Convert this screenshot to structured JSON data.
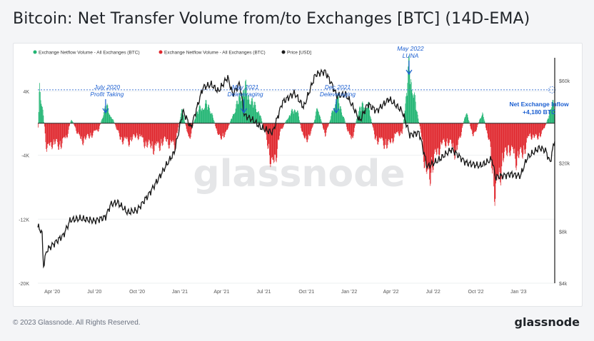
{
  "title": "Bitcoin: Net Transfer Volume from/to Exchanges [BTC] (14D-EMA)",
  "footer": {
    "copyright": "© 2023 Glassnode. All Rights Reserved.",
    "logo": "glassnode"
  },
  "watermark": "glassnode",
  "colors": {
    "inflow": "#21b573",
    "outflow": "#e0282e",
    "price": "#1a1a1a",
    "annotation": "#1c5fd1",
    "threshold": "#4a7fd6"
  },
  "chart_data": {
    "type": "bar",
    "legend_placement": "top-left",
    "series": [
      {
        "name": "Exchange Netflow Volume - All Exchanges (BTC)",
        "kind": "bar-positive"
      },
      {
        "name": "Exchange Netflow Volume - All Exchanges (BTC)",
        "kind": "bar-negative"
      },
      {
        "name": "Price [USD]",
        "kind": "line",
        "axis": "right-log"
      }
    ],
    "x_ticks": [
      "Apr '20",
      "Jul '20",
      "Oct '20",
      "Jan '21",
      "Apr '21",
      "Jul '21",
      "Oct '21",
      "Jan '22",
      "Apr '22",
      "Jul '22",
      "Oct '22",
      "Jan '23"
    ],
    "x_range": [
      "2020-03-01",
      "2023-03-20"
    ],
    "y_left": {
      "ticks": [
        4000,
        -4000,
        -12000,
        -20000
      ],
      "tick_labels": [
        "4K",
        "-4K",
        "-12K",
        "-20K"
      ],
      "range": [
        -20000,
        8000
      ]
    },
    "y_right": {
      "scale": "log",
      "ticks": [
        60000,
        20000,
        8000,
        4000
      ],
      "tick_labels": [
        "$60k",
        "$20k",
        "$8k",
        "$4k"
      ],
      "range": [
        4000,
        80000
      ]
    },
    "threshold_line": {
      "value": 4180,
      "style": "dashed"
    },
    "annotations": [
      {
        "lines": [
          "July 2020",
          "Profit Taking"
        ],
        "date": "2020-07-25",
        "arrow": true
      },
      {
        "lines": [
          "May 2021",
          "Deleveraging"
        ],
        "date": "2021-05-19",
        "arrow": true
      },
      {
        "lines": [
          "Dec 2021",
          "Deleveraging"
        ],
        "date": "2021-12-04",
        "arrow": true
      },
      {
        "lines": [
          "May 2022",
          "LUNA"
        ],
        "date": "2022-05-10",
        "arrow": true
      },
      {
        "lines": [
          "Net Exchange Inflow",
          "+4,180 BTC"
        ],
        "date": "2023-03-14",
        "arrow": false,
        "bold": true
      }
    ],
    "netflow": [
      {
        "date": "2020-03-01",
        "value": -800
      },
      {
        "date": "2020-03-04",
        "value": 7000
      },
      {
        "date": "2020-03-12",
        "value": 1500
      },
      {
        "date": "2020-03-20",
        "value": -4800
      },
      {
        "date": "2020-04-01",
        "value": -3200
      },
      {
        "date": "2020-04-15",
        "value": -3800
      },
      {
        "date": "2020-05-01",
        "value": -2500
      },
      {
        "date": "2020-05-12",
        "value": 800
      },
      {
        "date": "2020-06-01",
        "value": -3000
      },
      {
        "date": "2020-06-20",
        "value": -2200
      },
      {
        "date": "2020-07-10",
        "value": -1000
      },
      {
        "date": "2020-07-25",
        "value": 3000
      },
      {
        "date": "2020-08-10",
        "value": 500
      },
      {
        "date": "2020-08-25",
        "value": -2500
      },
      {
        "date": "2020-09-10",
        "value": -3200
      },
      {
        "date": "2020-10-01",
        "value": -2000
      },
      {
        "date": "2020-10-20",
        "value": -3500
      },
      {
        "date": "2020-11-10",
        "value": -4200
      },
      {
        "date": "2020-12-01",
        "value": -2800
      },
      {
        "date": "2020-12-20",
        "value": -4000
      },
      {
        "date": "2021-01-05",
        "value": 2500
      },
      {
        "date": "2021-01-20",
        "value": -3000
      },
      {
        "date": "2021-02-05",
        "value": 1800
      },
      {
        "date": "2021-02-25",
        "value": 3200
      },
      {
        "date": "2021-03-10",
        "value": 2000
      },
      {
        "date": "2021-03-25",
        "value": -2500
      },
      {
        "date": "2021-04-10",
        "value": -1800
      },
      {
        "date": "2021-04-25",
        "value": 1500
      },
      {
        "date": "2021-05-19",
        "value": 6000
      },
      {
        "date": "2021-06-05",
        "value": 3500
      },
      {
        "date": "2021-06-20",
        "value": 2000
      },
      {
        "date": "2021-07-05",
        "value": -2000
      },
      {
        "date": "2021-07-20",
        "value": -8000
      },
      {
        "date": "2021-08-05",
        "value": -1500
      },
      {
        "date": "2021-08-25",
        "value": 1500
      },
      {
        "date": "2021-09-10",
        "value": 2500
      },
      {
        "date": "2021-09-25",
        "value": -3000
      },
      {
        "date": "2021-10-10",
        "value": -1800
      },
      {
        "date": "2021-10-25",
        "value": 2800
      },
      {
        "date": "2021-11-10",
        "value": -2200
      },
      {
        "date": "2021-11-25",
        "value": 1800
      },
      {
        "date": "2021-12-04",
        "value": 4500
      },
      {
        "date": "2021-12-20",
        "value": 1000
      },
      {
        "date": "2022-01-05",
        "value": -3200
      },
      {
        "date": "2022-01-22",
        "value": 2500
      },
      {
        "date": "2022-02-10",
        "value": 3200
      },
      {
        "date": "2022-02-25",
        "value": -2500
      },
      {
        "date": "2022-03-10",
        "value": -3000
      },
      {
        "date": "2022-03-25",
        "value": -3800
      },
      {
        "date": "2022-04-10",
        "value": -2000
      },
      {
        "date": "2022-04-25",
        "value": -1500
      },
      {
        "date": "2022-05-10",
        "value": 9500
      },
      {
        "date": "2022-05-25",
        "value": 2500
      },
      {
        "date": "2022-06-05",
        "value": -2000
      },
      {
        "date": "2022-06-18",
        "value": -10000
      },
      {
        "date": "2022-07-01",
        "value": -6500
      },
      {
        "date": "2022-07-15",
        "value": -4000
      },
      {
        "date": "2022-08-01",
        "value": -3000
      },
      {
        "date": "2022-08-20",
        "value": -5000
      },
      {
        "date": "2022-09-10",
        "value": 2200
      },
      {
        "date": "2022-09-25",
        "value": -2500
      },
      {
        "date": "2022-10-15",
        "value": 2000
      },
      {
        "date": "2022-11-01",
        "value": -4500
      },
      {
        "date": "2022-11-12",
        "value": -12500
      },
      {
        "date": "2022-11-25",
        "value": -7000
      },
      {
        "date": "2022-12-10",
        "value": -4000
      },
      {
        "date": "2022-12-25",
        "value": -6000
      },
      {
        "date": "2023-01-10",
        "value": -5000
      },
      {
        "date": "2023-01-25",
        "value": -2000
      },
      {
        "date": "2023-02-10",
        "value": -2500
      },
      {
        "date": "2023-02-25",
        "value": -1000
      },
      {
        "date": "2023-03-08",
        "value": 1500
      },
      {
        "date": "2023-03-14",
        "value": 4180
      },
      {
        "date": "2023-03-20",
        "value": 2000
      }
    ],
    "price": [
      {
        "date": "2020-03-01",
        "value": 8500
      },
      {
        "date": "2020-03-10",
        "value": 7900
      },
      {
        "date": "2020-03-13",
        "value": 5000
      },
      {
        "date": "2020-03-20",
        "value": 6200
      },
      {
        "date": "2020-04-05",
        "value": 6800
      },
      {
        "date": "2020-04-25",
        "value": 7600
      },
      {
        "date": "2020-05-10",
        "value": 9300
      },
      {
        "date": "2020-06-01",
        "value": 9500
      },
      {
        "date": "2020-07-01",
        "value": 9200
      },
      {
        "date": "2020-07-25",
        "value": 9700
      },
      {
        "date": "2020-08-05",
        "value": 11500
      },
      {
        "date": "2020-08-20",
        "value": 11800
      },
      {
        "date": "2020-09-10",
        "value": 10300
      },
      {
        "date": "2020-10-01",
        "value": 10600
      },
      {
        "date": "2020-10-25",
        "value": 13000
      },
      {
        "date": "2020-11-15",
        "value": 16000
      },
      {
        "date": "2020-12-01",
        "value": 19000
      },
      {
        "date": "2020-12-20",
        "value": 23000
      },
      {
        "date": "2021-01-08",
        "value": 40000
      },
      {
        "date": "2021-01-25",
        "value": 32000
      },
      {
        "date": "2021-02-20",
        "value": 55000
      },
      {
        "date": "2021-03-10",
        "value": 57000
      },
      {
        "date": "2021-03-25",
        "value": 52000
      },
      {
        "date": "2021-04-14",
        "value": 63000
      },
      {
        "date": "2021-04-25",
        "value": 50000
      },
      {
        "date": "2021-05-10",
        "value": 58000
      },
      {
        "date": "2021-05-20",
        "value": 38000
      },
      {
        "date": "2021-06-10",
        "value": 35000
      },
      {
        "date": "2021-06-25",
        "value": 32000
      },
      {
        "date": "2021-07-20",
        "value": 30000
      },
      {
        "date": "2021-08-10",
        "value": 45000
      },
      {
        "date": "2021-09-05",
        "value": 51000
      },
      {
        "date": "2021-09-25",
        "value": 42000
      },
      {
        "date": "2021-10-20",
        "value": 65000
      },
      {
        "date": "2021-11-10",
        "value": 68000
      },
      {
        "date": "2021-11-25",
        "value": 57000
      },
      {
        "date": "2021-12-05",
        "value": 49000
      },
      {
        "date": "2021-12-25",
        "value": 50000
      },
      {
        "date": "2022-01-10",
        "value": 42000
      },
      {
        "date": "2022-01-24",
        "value": 35000
      },
      {
        "date": "2022-02-10",
        "value": 44000
      },
      {
        "date": "2022-03-01",
        "value": 40000
      },
      {
        "date": "2022-03-28",
        "value": 47000
      },
      {
        "date": "2022-04-25",
        "value": 40000
      },
      {
        "date": "2022-05-12",
        "value": 29000
      },
      {
        "date": "2022-06-01",
        "value": 30000
      },
      {
        "date": "2022-06-18",
        "value": 19000
      },
      {
        "date": "2022-07-10",
        "value": 20500
      },
      {
        "date": "2022-08-10",
        "value": 24000
      },
      {
        "date": "2022-09-10",
        "value": 20000
      },
      {
        "date": "2022-10-10",
        "value": 19200
      },
      {
        "date": "2022-11-05",
        "value": 21000
      },
      {
        "date": "2022-11-12",
        "value": 16500
      },
      {
        "date": "2022-12-15",
        "value": 17200
      },
      {
        "date": "2023-01-05",
        "value": 16800
      },
      {
        "date": "2023-01-20",
        "value": 21500
      },
      {
        "date": "2023-02-15",
        "value": 24500
      },
      {
        "date": "2023-03-01",
        "value": 23500
      },
      {
        "date": "2023-03-10",
        "value": 20000
      },
      {
        "date": "2023-03-20",
        "value": 27500
      }
    ]
  }
}
